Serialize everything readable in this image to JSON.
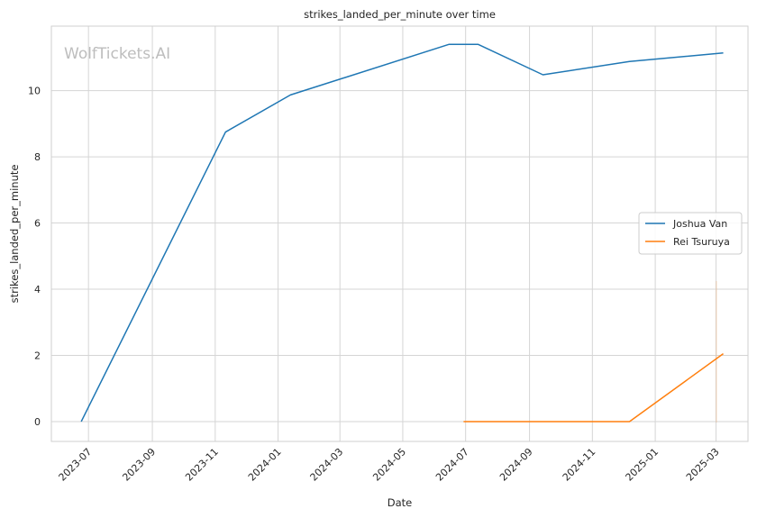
{
  "chart_data": {
    "type": "line",
    "title": "strikes_landed_per_minute over time",
    "xlabel": "Date",
    "ylabel": "strikes_landed_per_minute",
    "watermark": "WolfTickets.AI",
    "grid": true,
    "legend_position": "center-right",
    "xlim": [
      "2023-05-26",
      "2025-04-01"
    ],
    "ylim": [
      -0.6,
      11.95
    ],
    "x_ticks": [
      "2023-07",
      "2023-09",
      "2023-11",
      "2024-01",
      "2024-03",
      "2024-05",
      "2024-07",
      "2024-09",
      "2024-11",
      "2025-01",
      "2025-03"
    ],
    "y_ticks": [
      0,
      2,
      4,
      6,
      8,
      10
    ],
    "series": [
      {
        "name": "Joshua Van",
        "color": "#1f77b4",
        "points": [
          {
            "x": "2023-06-24",
            "y": 0
          },
          {
            "x": "2023-11-11",
            "y": 8.75
          },
          {
            "x": "2024-01-13",
            "y": 9.87
          },
          {
            "x": "2024-06-15",
            "y": 11.4
          },
          {
            "x": "2024-07-13",
            "y": 11.4
          },
          {
            "x": "2024-09-14",
            "y": 10.48
          },
          {
            "x": "2024-12-07",
            "y": 10.88
          },
          {
            "x": "2025-03-08",
            "y": 11.14
          }
        ]
      },
      {
        "name": "Rei Tsuruya",
        "color": "#ff7f0e",
        "points": [
          {
            "x": "2024-06-29",
            "y": 0
          },
          {
            "x": "2024-12-07",
            "y": 0
          },
          {
            "x": "2025-03-08",
            "y": 2.05
          }
        ]
      }
    ]
  }
}
